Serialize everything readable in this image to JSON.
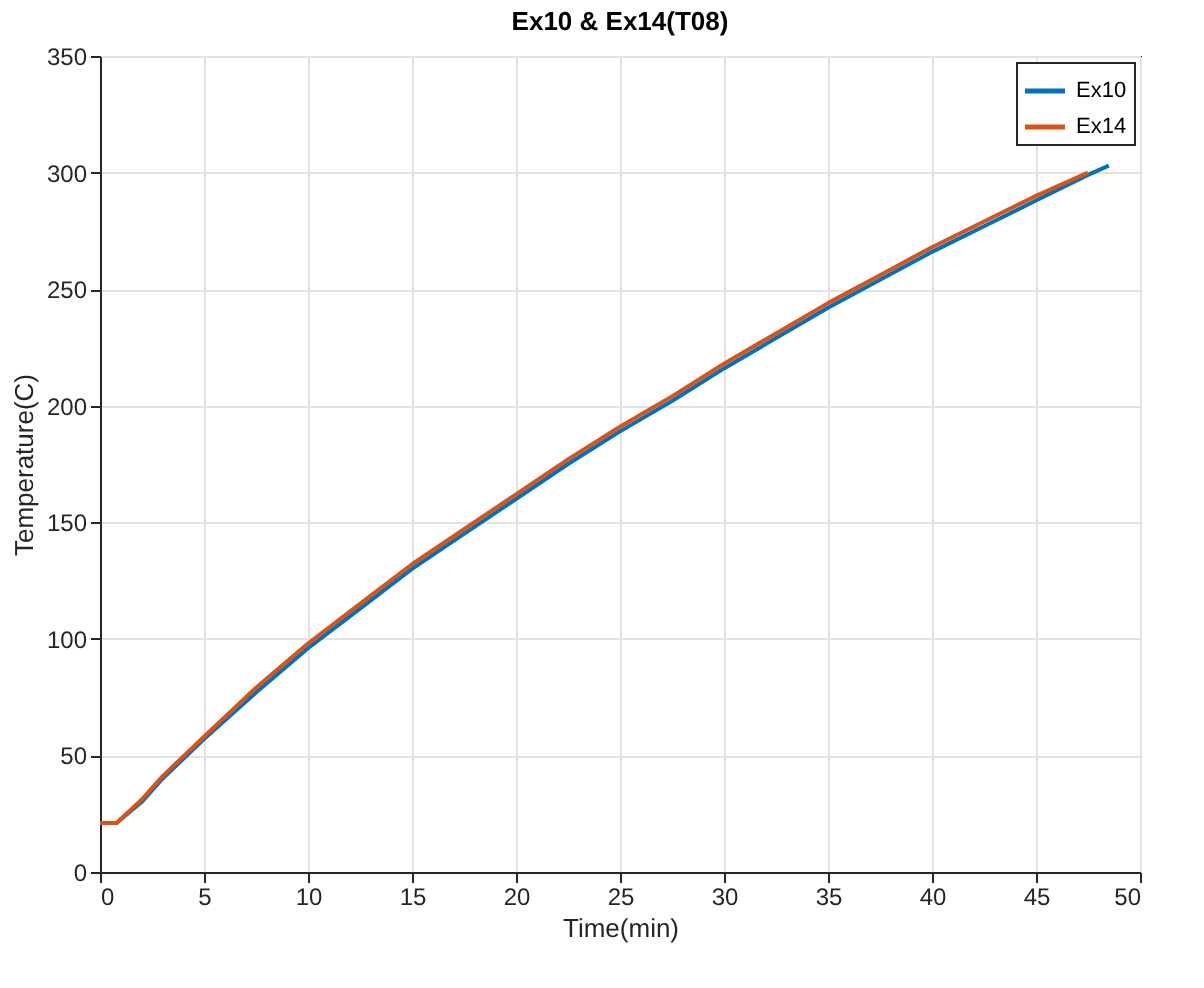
{
  "chart_data": {
    "type": "line",
    "title": "Ex10 & Ex14(T08)",
    "xlabel": "Time(min)",
    "ylabel": "Temperature(C)",
    "xlim": [
      0,
      50
    ],
    "ylim": [
      0,
      350
    ],
    "xticks": [
      0,
      5,
      10,
      15,
      20,
      25,
      30,
      35,
      40,
      45,
      50
    ],
    "yticks": [
      0,
      50,
      100,
      150,
      200,
      250,
      300,
      350
    ],
    "grid": true,
    "legend": "top right",
    "line_style": "solid",
    "marker": "none",
    "series": [
      {
        "name": "Ex10",
        "color": "#0072bd",
        "x": [
          0,
          0.8,
          2,
          3,
          5,
          7.5,
          10,
          12.5,
          15,
          17.5,
          20,
          22.5,
          25,
          27.5,
          30,
          32.5,
          35,
          37.5,
          40,
          42.5,
          45,
          47.5,
          48.5
        ],
        "values": [
          21,
          21,
          30,
          40,
          57,
          77,
          96,
          113,
          130,
          145,
          160,
          175,
          189,
          202,
          216,
          229,
          242,
          254,
          266,
          277,
          288,
          299,
          303
        ]
      },
      {
        "name": "Ex14",
        "color": "#d95319",
        "x": [
          0,
          0.8,
          2,
          3,
          5,
          7.5,
          10,
          12.5,
          15,
          17.5,
          20,
          22.5,
          25,
          27.5,
          30,
          32.5,
          35,
          37.5,
          40,
          42.5,
          45,
          47.5
        ],
        "values": [
          21,
          21,
          31,
          41,
          58,
          79,
          98,
          115,
          132,
          147,
          162,
          177,
          191,
          204,
          218,
          231,
          244,
          256,
          268,
          279,
          290,
          300
        ]
      }
    ]
  }
}
